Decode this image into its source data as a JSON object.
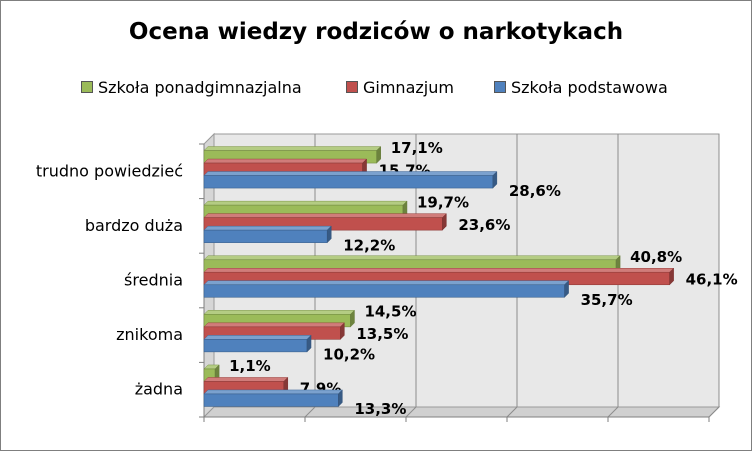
{
  "chart_data": {
    "type": "bar",
    "orientation": "horizontal",
    "three_d": true,
    "title": "Ocena wiedzy rodziców o narkotykach",
    "categories": [
      "trudno powiedzieć",
      "bardzo duża",
      "średnia",
      "znikoma",
      "żadna"
    ],
    "series": [
      {
        "name": "Szkoła ponadgimnazjalna",
        "color": "#9bbb59",
        "values": [
          17.1,
          19.7,
          40.8,
          14.5,
          1.1
        ],
        "labels": [
          "17,1%",
          "19,7%",
          "40,8%",
          "14,5%",
          "1,1%"
        ]
      },
      {
        "name": "Gimnazjum",
        "color": "#c0504d",
        "values": [
          15.7,
          23.6,
          46.1,
          13.5,
          7.9
        ],
        "labels": [
          "15,7%",
          "23,6%",
          "46,1%",
          "13,5%",
          "7,9%"
        ]
      },
      {
        "name": "Szkoła podstawowa",
        "color": "#4f81bd",
        "values": [
          28.6,
          12.2,
          35.7,
          10.2,
          13.3
        ],
        "labels": [
          "28,6%",
          "12,2%",
          "35,7%",
          "10,2%",
          "13,3%"
        ]
      }
    ],
    "xlim": [
      0,
      50
    ],
    "grid": true,
    "legend_position": "top"
  }
}
